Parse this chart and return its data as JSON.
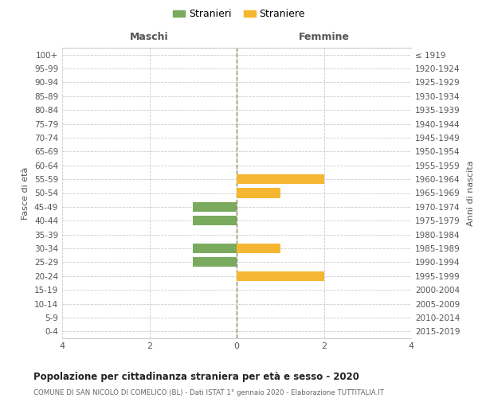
{
  "age_groups": [
    "100+",
    "95-99",
    "90-94",
    "85-89",
    "80-84",
    "75-79",
    "70-74",
    "65-69",
    "60-64",
    "55-59",
    "50-54",
    "45-49",
    "40-44",
    "35-39",
    "30-34",
    "25-29",
    "20-24",
    "15-19",
    "10-14",
    "5-9",
    "0-4"
  ],
  "birth_years": [
    "≤ 1919",
    "1920-1924",
    "1925-1929",
    "1930-1934",
    "1935-1939",
    "1940-1944",
    "1945-1949",
    "1950-1954",
    "1955-1959",
    "1960-1964",
    "1965-1969",
    "1970-1974",
    "1975-1979",
    "1980-1984",
    "1985-1989",
    "1990-1994",
    "1995-1999",
    "2000-2004",
    "2005-2009",
    "2010-2014",
    "2015-2019"
  ],
  "males": [
    0,
    0,
    0,
    0,
    0,
    0,
    0,
    0,
    0,
    0,
    0,
    -1,
    -1,
    0,
    -1,
    -1,
    0,
    0,
    0,
    0,
    0
  ],
  "females": [
    0,
    0,
    0,
    0,
    0,
    0,
    0,
    0,
    0,
    2,
    1,
    0,
    0,
    0,
    1,
    0,
    2,
    0,
    0,
    0,
    0
  ],
  "color_male": "#7aaa5e",
  "color_female": "#f5b731",
  "color_grid": "#cccccc",
  "color_center_line": "#888855",
  "title_main": "Popolazione per cittadinanza straniera per età e sesso - 2020",
  "title_sub": "COMUNE DI SAN NICOLÒ DI COMELICO (BL) - Dati ISTAT 1° gennaio 2020 - Elaborazione TUTTITALIA.IT",
  "label_males": "Maschi",
  "label_females": "Femmine",
  "legend_stranieri": "Stranieri",
  "legend_straniere": "Straniere",
  "ylabel_left": "Fasce di età",
  "ylabel_right": "Anni di nascita",
  "xlim": [
    -4,
    4
  ],
  "xticks": [
    -4,
    -2,
    0,
    2,
    4
  ],
  "xtick_labels": [
    "4",
    "2",
    "0",
    "2",
    "4"
  ]
}
